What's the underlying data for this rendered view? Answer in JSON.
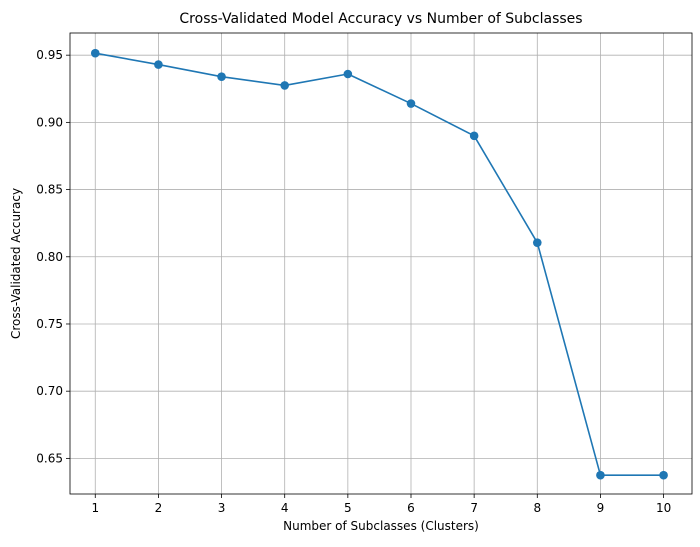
{
  "chart_data": {
    "type": "line",
    "title": "Cross-Validated Model Accuracy vs Number of Subclasses",
    "xlabel": "Number of Subclasses (Clusters)",
    "ylabel": "Cross-Validated Accuracy",
    "x": [
      1,
      2,
      3,
      4,
      5,
      6,
      7,
      8,
      9,
      10
    ],
    "series": [
      {
        "values": [
          0.9515,
          0.943,
          0.934,
          0.9275,
          0.936,
          0.914,
          0.89,
          0.8105,
          0.6375,
          0.6375
        ],
        "color": "#1f77b4",
        "marker": "circle"
      }
    ],
    "xlim": [
      0.6,
      10.45
    ],
    "ylim": [
      0.6235,
      0.9665
    ],
    "xticks": [
      1,
      2,
      3,
      4,
      5,
      6,
      7,
      8,
      9,
      10
    ],
    "xtick_labels": [
      "1",
      "2",
      "3",
      "4",
      "5",
      "6",
      "7",
      "8",
      "9",
      "10"
    ],
    "yticks": [
      0.65,
      0.7,
      0.75,
      0.8,
      0.85,
      0.9,
      0.95
    ],
    "ytick_labels": [
      "0.65",
      "0.70",
      "0.75",
      "0.80",
      "0.85",
      "0.90",
      "0.95"
    ],
    "grid": true
  }
}
